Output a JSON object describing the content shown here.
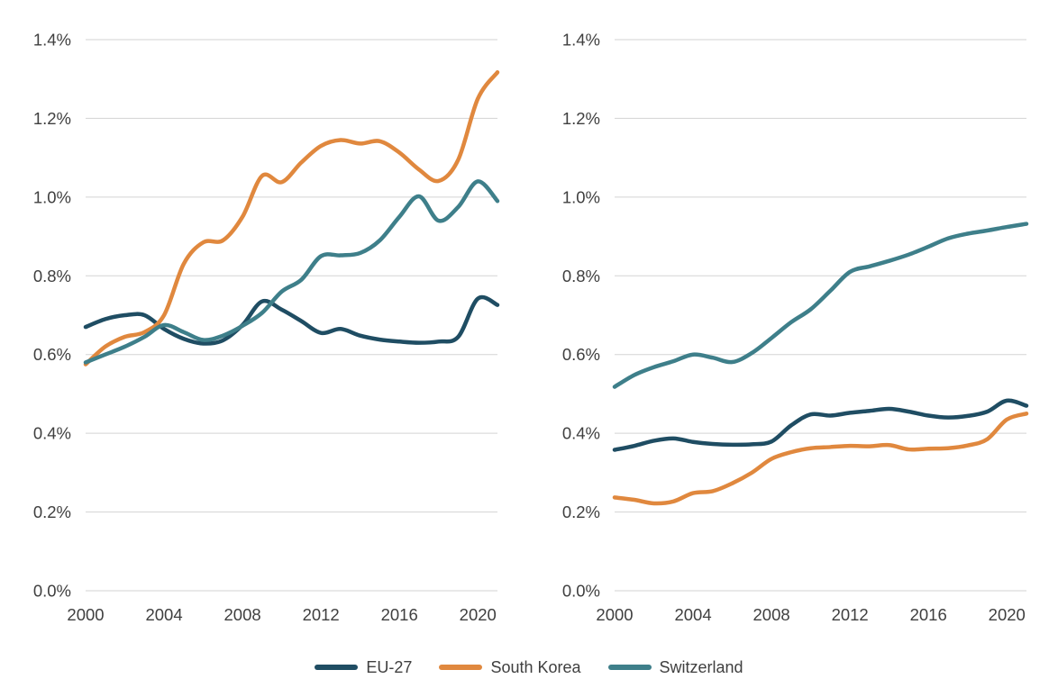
{
  "legend": {
    "items": [
      {
        "label": "EU-27",
        "color": "#1f4d63"
      },
      {
        "label": "South Korea",
        "color": "#e0883e"
      },
      {
        "label": "Switzerland",
        "color": "#3e7f8a"
      }
    ]
  },
  "axis_style": {
    "grid_color": "#d3d3d3",
    "tick_label_color": "#3f3f3f"
  },
  "chart_data": [
    {
      "type": "line",
      "title": "",
      "xlabel": "",
      "ylabel": "",
      "xlim": [
        2000,
        2021
      ],
      "ylim": [
        0,
        1.4
      ],
      "grid": true,
      "legend_position": "bottom",
      "x": [
        2000,
        2001,
        2002,
        2003,
        2004,
        2005,
        2006,
        2007,
        2008,
        2009,
        2010,
        2011,
        2012,
        2013,
        2014,
        2015,
        2016,
        2017,
        2018,
        2019,
        2020,
        2021
      ],
      "xticks": [
        2000,
        2004,
        2008,
        2012,
        2016,
        2020
      ],
      "xtick_labels": [
        "2000",
        "2004",
        "2008",
        "2012",
        "2016",
        "2020"
      ],
      "yticks": [
        0,
        0.2,
        0.4,
        0.6,
        0.8,
        1.0,
        1.2,
        1.4
      ],
      "ytick_labels": [
        "0.0%",
        "0.2%",
        "0.4%",
        "0.6%",
        "0.8%",
        "1.0%",
        "1.2%",
        "1.4%"
      ],
      "series": [
        {
          "name": "EU-27",
          "color": "#1f4d63",
          "values": [
            0.67,
            0.69,
            0.7,
            0.7,
            0.665,
            0.64,
            0.628,
            0.636,
            0.675,
            0.735,
            0.714,
            0.685,
            0.655,
            0.665,
            0.648,
            0.638,
            0.633,
            0.63,
            0.633,
            0.645,
            0.742,
            0.726
          ]
        },
        {
          "name": "South Korea",
          "color": "#e0883e",
          "values": [
            0.575,
            0.62,
            0.645,
            0.657,
            0.7,
            0.83,
            0.885,
            0.89,
            0.95,
            1.054,
            1.038,
            1.088,
            1.13,
            1.145,
            1.136,
            1.142,
            1.113,
            1.07,
            1.041,
            1.095,
            1.25,
            1.317
          ]
        },
        {
          "name": "Switzerland",
          "color": "#3e7f8a",
          "values": [
            0.58,
            0.6,
            0.62,
            0.645,
            0.675,
            0.657,
            0.637,
            0.648,
            0.673,
            0.706,
            0.76,
            0.79,
            0.85,
            0.852,
            0.858,
            0.89,
            0.95,
            1.002,
            0.94,
            0.975,
            1.04,
            0.99
          ]
        }
      ]
    },
    {
      "type": "line",
      "title": "",
      "xlabel": "",
      "ylabel": "",
      "xlim": [
        2000,
        2021
      ],
      "ylim": [
        0,
        1.4
      ],
      "grid": true,
      "legend_position": "bottom",
      "x": [
        2000,
        2001,
        2002,
        2003,
        2004,
        2005,
        2006,
        2007,
        2008,
        2009,
        2010,
        2011,
        2012,
        2013,
        2014,
        2015,
        2016,
        2017,
        2018,
        2019,
        2020,
        2021
      ],
      "xticks": [
        2000,
        2004,
        2008,
        2012,
        2016,
        2020
      ],
      "xtick_labels": [
        "2000",
        "2004",
        "2008",
        "2012",
        "2016",
        "2020"
      ],
      "yticks": [
        0,
        0.2,
        0.4,
        0.6,
        0.8,
        1.0,
        1.2,
        1.4
      ],
      "ytick_labels": [
        "0.0%",
        "0.2%",
        "0.4%",
        "0.6%",
        "0.8%",
        "1.0%",
        "1.2%",
        "1.4%"
      ],
      "series": [
        {
          "name": "EU-27",
          "color": "#1f4d63",
          "values": [
            0.358,
            0.368,
            0.381,
            0.387,
            0.378,
            0.373,
            0.371,
            0.372,
            0.379,
            0.42,
            0.448,
            0.445,
            0.452,
            0.457,
            0.462,
            0.455,
            0.445,
            0.44,
            0.444,
            0.455,
            0.483,
            0.47
          ]
        },
        {
          "name": "South Korea",
          "color": "#e0883e",
          "values": [
            0.237,
            0.231,
            0.222,
            0.227,
            0.248,
            0.253,
            0.273,
            0.3,
            0.335,
            0.352,
            0.362,
            0.365,
            0.368,
            0.367,
            0.37,
            0.359,
            0.361,
            0.362,
            0.369,
            0.385,
            0.435,
            0.45
          ]
        },
        {
          "name": "Switzerland",
          "color": "#3e7f8a",
          "values": [
            0.518,
            0.548,
            0.568,
            0.583,
            0.6,
            0.592,
            0.581,
            0.604,
            0.642,
            0.682,
            0.715,
            0.762,
            0.81,
            0.824,
            0.838,
            0.854,
            0.874,
            0.895,
            0.907,
            0.915,
            0.924,
            0.932
          ]
        }
      ]
    }
  ]
}
